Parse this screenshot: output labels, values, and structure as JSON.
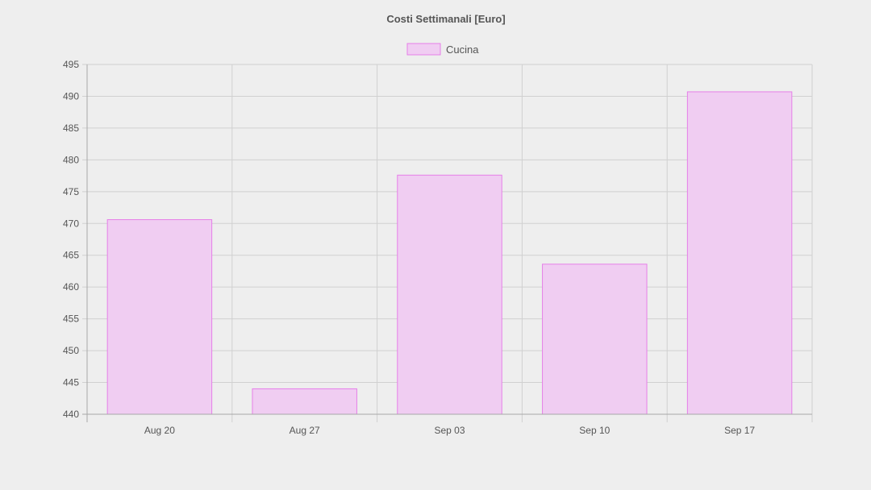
{
  "chart_data": {
    "type": "bar",
    "title": "Costi Settimanali [Euro]",
    "categories": [
      "Aug 20",
      "Aug 27",
      "Sep 03",
      "Sep 10",
      "Sep 17"
    ],
    "series": [
      {
        "name": "Cucina",
        "values": [
          470.6,
          444,
          477.6,
          463.6,
          490.7
        ]
      }
    ],
    "ylim": [
      440,
      495
    ],
    "yticks": [
      440,
      445,
      450,
      455,
      460,
      465,
      470,
      475,
      480,
      485,
      490,
      495
    ],
    "grid": true,
    "legend_position": "top-center",
    "colors": {
      "bar_fill": "#f0cdf2",
      "bar_stroke": "#e67fe8",
      "grid": "#d0d0d0",
      "axis": "#a8a8a8",
      "text": "#555555",
      "title": "#555555",
      "background": "#eeeeee"
    }
  }
}
